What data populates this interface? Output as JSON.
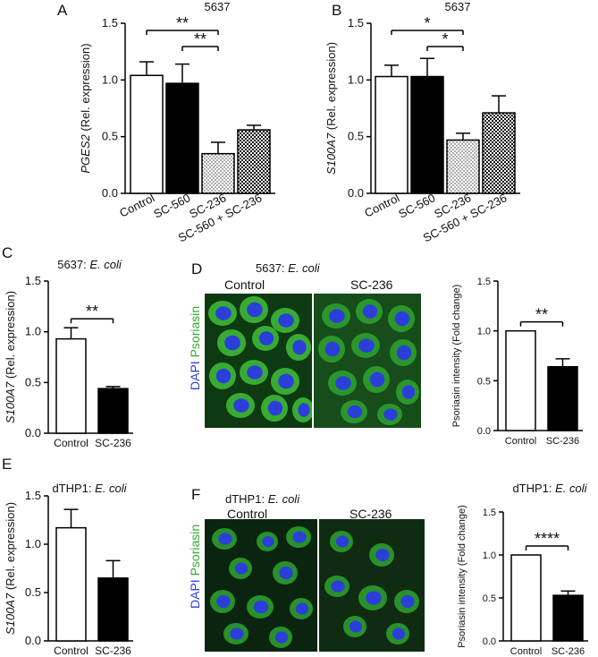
{
  "panels": {
    "A": "A",
    "B": "B",
    "C": "C",
    "D": "D",
    "E": "E",
    "F": "F"
  },
  "microscopy": {
    "D": {
      "title_pre": "5637: ",
      "title_em": "E. coli",
      "left_label": "Control",
      "right_label": "SC-236",
      "stain_dapi": "DAPI",
      "stain_psoriasin": "Psoriasin"
    },
    "F": {
      "title_pre": "dTHP1: ",
      "title_em": "E. coli",
      "left_label": "Control",
      "right_label": "SC-236",
      "stain_dapi": "DAPI",
      "stain_psoriasin": "Psoriasin"
    }
  },
  "colors": {
    "dapi": "#2b3fd8",
    "psoriasin": "#2fae2f",
    "bar_black": "#000000",
    "bar_white": "#ffffff"
  },
  "chart_data": [
    {
      "id": "A",
      "type": "bar",
      "title": "5637",
      "ylabel_italic": "PGES2",
      "ylabel_rest": " (Rel. expression)",
      "categories": [
        "Control",
        "SC-560",
        "SC-236",
        "SC-560 + SC-236"
      ],
      "values": [
        1.04,
        0.97,
        0.35,
        0.56
      ],
      "errors": [
        0.12,
        0.17,
        0.1,
        0.04
      ],
      "fills": [
        "white",
        "black",
        "dots",
        "checker"
      ],
      "ylim": [
        0,
        1.5
      ],
      "yticks": [
        "0.0",
        "0.5",
        "1.0",
        "1.5"
      ],
      "significance": [
        {
          "from": 0,
          "to": 2,
          "label": "**"
        },
        {
          "from": 1,
          "to": 2,
          "label": "**"
        }
      ]
    },
    {
      "id": "B",
      "type": "bar",
      "title": "5637",
      "ylabel_italic": "S100A7",
      "ylabel_rest": " (Rel. expression)",
      "categories": [
        "Control",
        "SC-560",
        "SC-236",
        "SC-560 + SC-236"
      ],
      "values": [
        1.03,
        1.03,
        0.47,
        0.71
      ],
      "errors": [
        0.1,
        0.16,
        0.06,
        0.15
      ],
      "fills": [
        "white",
        "black",
        "dots",
        "checker"
      ],
      "ylim": [
        0,
        1.5
      ],
      "yticks": [
        "0.0",
        "0.5",
        "1.0",
        "1.5"
      ],
      "significance": [
        {
          "from": 0,
          "to": 2,
          "label": "*"
        },
        {
          "from": 1,
          "to": 2,
          "label": "*"
        }
      ]
    },
    {
      "id": "C",
      "type": "bar",
      "title_pre": "5637: ",
      "title_em": "E. coli",
      "ylabel_italic": "S100A7",
      "ylabel_rest": " (Rel. expression)",
      "categories": [
        "Control",
        "SC-236"
      ],
      "values": [
        0.93,
        0.44
      ],
      "errors": [
        0.11,
        0.02
      ],
      "fills": [
        "white",
        "black"
      ],
      "ylim": [
        0,
        1.5
      ],
      "yticks": [
        "0.0",
        "0.5",
        "1.0",
        "1.5"
      ],
      "significance": [
        {
          "from": 0,
          "to": 1,
          "label": "**"
        }
      ]
    },
    {
      "id": "D",
      "type": "bar",
      "ylabel_rest": "Psoriasin intensity (Fold change)",
      "categories": [
        "Control",
        "SC-236"
      ],
      "values": [
        1.0,
        0.64
      ],
      "errors": [
        0.0,
        0.08
      ],
      "fills": [
        "white",
        "black"
      ],
      "ylim": [
        0,
        1.5
      ],
      "yticks": [
        "0.0",
        "0.5",
        "1.0",
        "1.5"
      ],
      "significance": [
        {
          "from": 0,
          "to": 1,
          "label": "**"
        }
      ]
    },
    {
      "id": "E",
      "type": "bar",
      "title_pre": "dTHP1: ",
      "title_em": "E. coli",
      "ylabel_italic": "S100A7",
      "ylabel_rest": " (Rel. expression)",
      "categories": [
        "Control",
        "SC-236"
      ],
      "values": [
        1.17,
        0.65
      ],
      "errors": [
        0.19,
        0.18
      ],
      "fills": [
        "white",
        "black"
      ],
      "ylim": [
        0,
        1.5
      ],
      "yticks": [
        "0.0",
        "0.5",
        "1.0",
        "1.5"
      ],
      "significance": []
    },
    {
      "id": "F",
      "type": "bar",
      "title_pre": "dTHP1: ",
      "title_em": "E. coli",
      "ylabel_rest": "Psoriasin intensity (Fold change)",
      "categories": [
        "Control",
        "SC-236"
      ],
      "values": [
        1.0,
        0.53
      ],
      "errors": [
        0.0,
        0.05
      ],
      "fills": [
        "white",
        "black"
      ],
      "ylim": [
        0,
        1.5
      ],
      "yticks": [
        "0.0",
        "0.5",
        "1.0",
        "1.5"
      ],
      "significance": [
        {
          "from": 0,
          "to": 1,
          "label": "****"
        }
      ]
    }
  ]
}
